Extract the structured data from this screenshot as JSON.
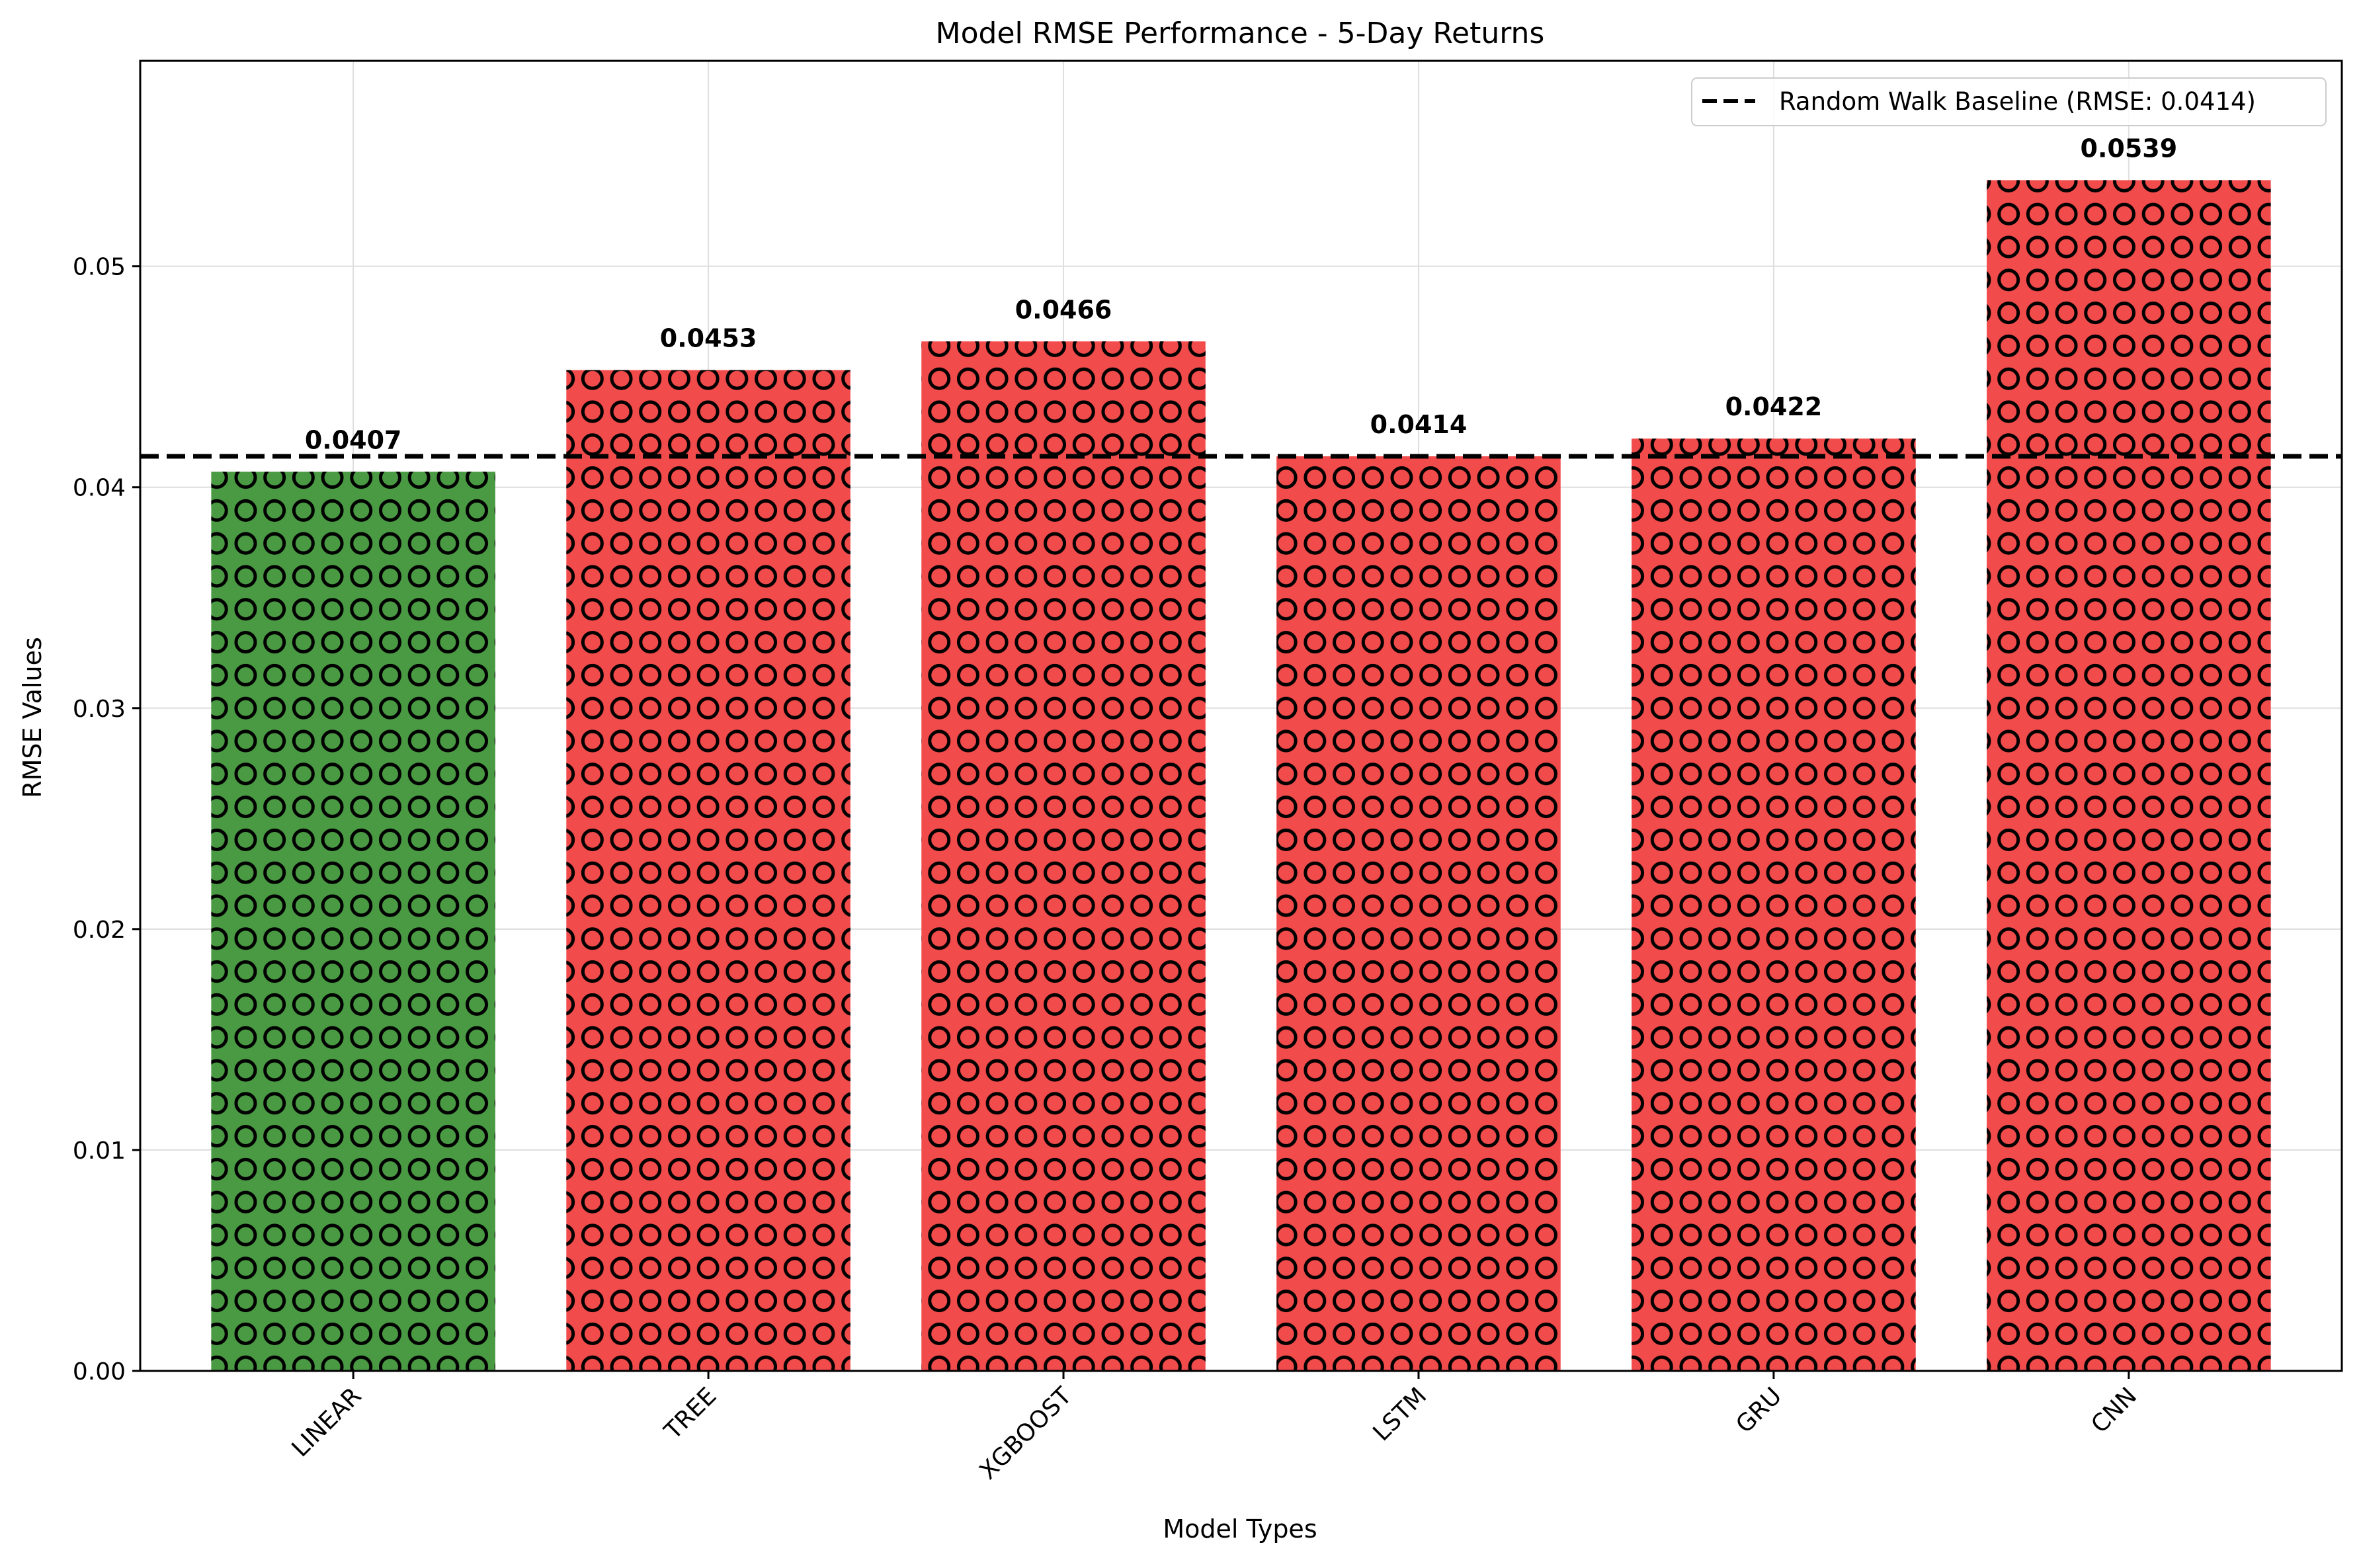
{
  "chart_data": {
    "type": "bar",
    "title": "Model RMSE Performance - 5-Day Returns",
    "xlabel": "Model Types",
    "ylabel": "RMSE Values",
    "categories": [
      "LINEAR",
      "TREE",
      "XGBOOST",
      "LSTM",
      "GRU",
      "CNN"
    ],
    "values": [
      0.0407,
      0.0453,
      0.0466,
      0.0414,
      0.0422,
      0.0539
    ],
    "value_labels": [
      "0.0407",
      "0.0453",
      "0.0466",
      "0.0414",
      "0.0422",
      "0.0539"
    ],
    "bar_colors": [
      "#4a9a44",
      "#f24b4b",
      "#f24b4b",
      "#f24b4b",
      "#f24b4b",
      "#f24b4b"
    ],
    "hatch": "circles",
    "hatch_color": "#000000",
    "ylim": [
      0,
      0.0593
    ],
    "yticks": [
      0.0,
      0.01,
      0.02,
      0.03,
      0.04,
      0.05
    ],
    "ytick_labels": [
      "0.00",
      "0.01",
      "0.02",
      "0.03",
      "0.04",
      "0.05"
    ],
    "xtick_rotation": 45,
    "grid": true,
    "baseline": {
      "value": 0.0414,
      "label": "Random Walk Baseline (RMSE: 0.0414)",
      "style": "dashed",
      "color": "#000000"
    },
    "legend": {
      "position": "top-right"
    }
  }
}
